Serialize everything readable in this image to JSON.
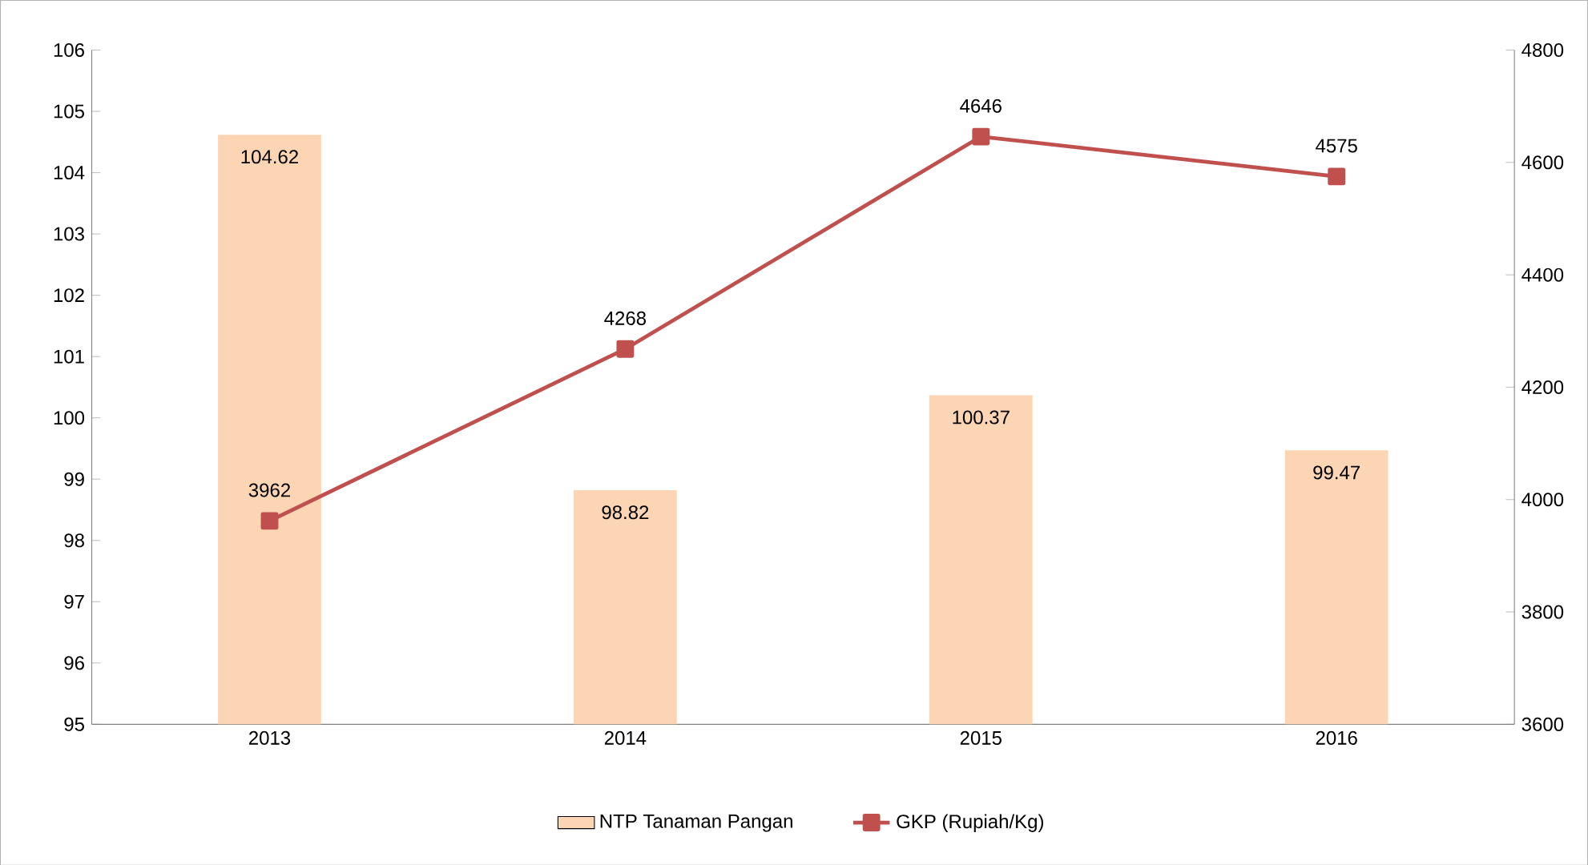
{
  "chart_data": {
    "type": "bar",
    "categories": [
      "2013",
      "2014",
      "2015",
      "2016"
    ],
    "series": [
      {
        "name": "NTP Tanaman Pangan",
        "color": "#fcd5b5",
        "values": [
          104.62,
          98.82,
          100.37,
          99.47
        ]
      },
      {
        "name": "GKP (Rupiah/Kg)",
        "type": "line",
        "axis": "y2",
        "color": "#c0504d",
        "values": [
          3962,
          4268,
          4646,
          4575
        ]
      }
    ],
    "ylim": [
      95,
      106
    ],
    "yticks": [
      95,
      96,
      97,
      98,
      99,
      100,
      101,
      102,
      103,
      104,
      105,
      106
    ],
    "y2lim": [
      3600,
      4800
    ],
    "y2ticks": [
      3600,
      3800,
      4000,
      4200,
      4400,
      4600,
      4800
    ],
    "data_labels": true,
    "legend": "bottom",
    "marker": "square",
    "grid": false
  }
}
